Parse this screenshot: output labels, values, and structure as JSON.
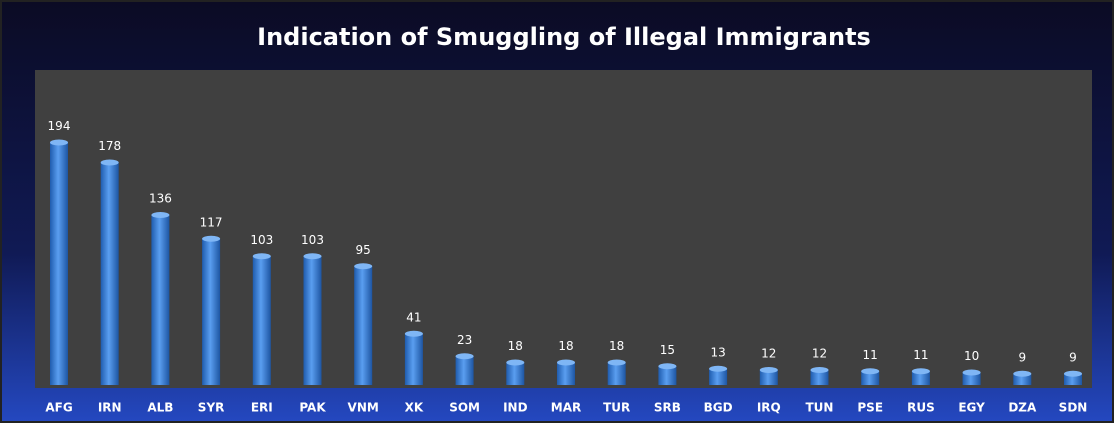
{
  "chart_data": {
    "type": "bar",
    "title": "Indication of  Smuggling of Illegal Immigrants",
    "categories": [
      "AFG",
      "IRN",
      "ALB",
      "SYR",
      "ERI",
      "PAK",
      "VNM",
      "XK",
      "SOM",
      "IND",
      "MAR",
      "TUR",
      "SRB",
      "BGD",
      "IRQ",
      "TUN",
      "PSE",
      "RUS",
      "EGY",
      "DZA",
      "SDN"
    ],
    "values": [
      194,
      178,
      136,
      117,
      103,
      103,
      95,
      41,
      23,
      18,
      18,
      18,
      15,
      13,
      12,
      12,
      11,
      11,
      10,
      9,
      9
    ],
    "color": "#3d82d8"
  }
}
